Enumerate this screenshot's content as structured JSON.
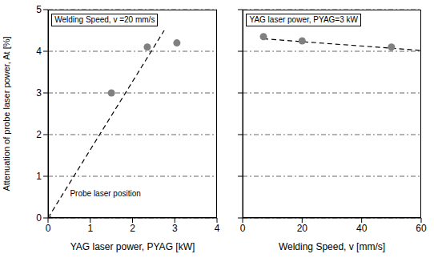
{
  "chart_data": [
    {
      "type": "scatter",
      "xlabel": "YAG laser power, PYAG [kW]",
      "ylabel": "Attenuation of probe laser power, At [%]",
      "annotations": [
        "Welding Speed, v =20 mm/s",
        "Probe laser position"
      ],
      "xlim": [
        0,
        4
      ],
      "xticks": [
        0,
        1,
        2,
        3,
        4
      ],
      "ylim": [
        0,
        5
      ],
      "yticks": [
        0,
        1,
        2,
        3,
        4,
        5
      ],
      "grid": true,
      "series": [
        {
          "type": "scatter",
          "color": "#808080",
          "marker": "circle",
          "x": [
            0,
            1.5,
            2.35,
            3.05
          ],
          "values": [
            0,
            3.0,
            4.1,
            4.2
          ]
        },
        {
          "type": "line",
          "line_style": "dashed",
          "color": "#000000",
          "x": [
            0,
            2.75
          ],
          "values": [
            0,
            4.5
          ]
        }
      ]
    },
    {
      "type": "scatter",
      "xlabel": "Welding Speed, v [mm/s]",
      "annotations": [
        "YAG laser power, PYAG=3 kW"
      ],
      "xlim": [
        0,
        60
      ],
      "xticks": [
        0,
        20,
        40,
        60
      ],
      "ylim": [
        0,
        5
      ],
      "yticks": [
        0,
        1,
        2,
        3,
        4,
        5
      ],
      "grid": true,
      "tick_labels": "x",
      "series": [
        {
          "type": "scatter",
          "color": "#808080",
          "marker": "circle",
          "x": [
            7,
            20,
            50
          ],
          "values": [
            4.35,
            4.25,
            4.1
          ]
        },
        {
          "type": "line",
          "line_style": "dashed",
          "color": "#000000",
          "x": [
            7,
            60
          ],
          "values": [
            4.3,
            4.02
          ]
        }
      ]
    }
  ]
}
